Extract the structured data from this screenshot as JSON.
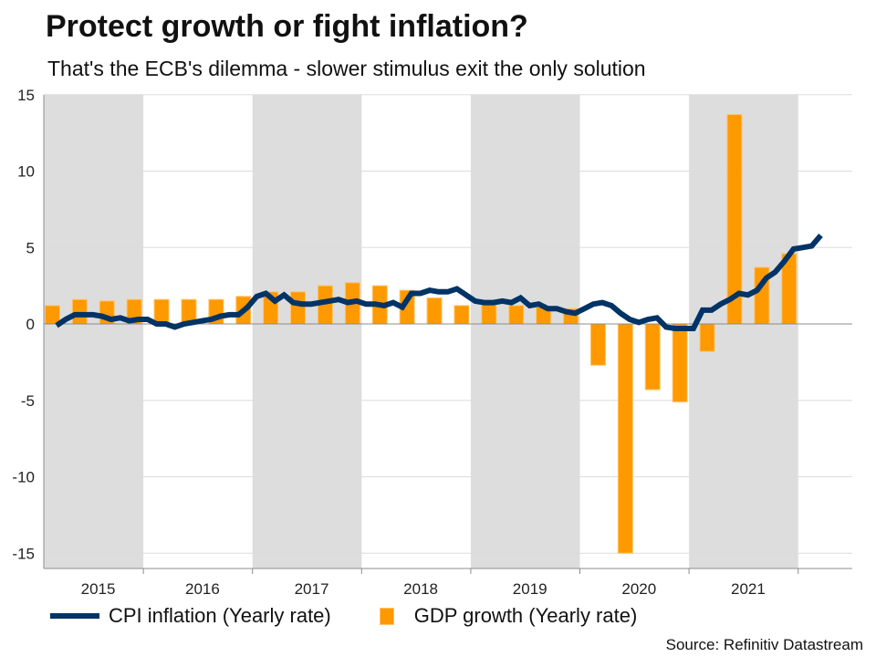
{
  "header": {
    "title": "Protect growth or fight inflation?",
    "subtitle": "That's the ECB's dilemma - slower stimulus exit the only solution"
  },
  "legend": {
    "cpi_label": "CPI inflation (Yearly rate)",
    "gdp_label": "GDP growth (Yearly rate)"
  },
  "source": "Source: Refinitiv Datastream",
  "colors": {
    "cpi": "#003366",
    "gdp": "#ff9900",
    "gdp_edge": "#ffc46b",
    "band": "#dddddd",
    "grid": "#dcdcdc",
    "axis": "#8c8c8c"
  },
  "chart_data": {
    "type": "bar+line",
    "title": "Protect growth or fight inflation?",
    "subtitle": "That's the ECB's dilemma - slower stimulus exit the only solution",
    "xlabel": "",
    "ylabel": "",
    "ylim": [
      -16,
      15
    ],
    "yticks": [
      15,
      10,
      5,
      0,
      -5,
      -10,
      -15
    ],
    "grid": true,
    "legend_position": "bottom",
    "x_range_years": [
      2014.6,
      2022.0
    ],
    "years": [
      "2015",
      "2016",
      "2017",
      "2018",
      "2019",
      "2020",
      "2021"
    ],
    "shaded_years": [
      "2015",
      "2017",
      "2019",
      "2021"
    ],
    "series": [
      {
        "name": "GDP growth (Yearly rate)",
        "type": "bar",
        "x": [
          "2014Q4",
          "2015Q1",
          "2015Q2",
          "2015Q3",
          "2015Q4",
          "2016Q1",
          "2016Q2",
          "2016Q3",
          "2016Q4",
          "2017Q1",
          "2017Q2",
          "2017Q3",
          "2017Q4",
          "2018Q1",
          "2018Q2",
          "2018Q3",
          "2018Q4",
          "2019Q1",
          "2019Q2",
          "2019Q3",
          "2019Q4",
          "2020Q1",
          "2020Q2",
          "2020Q3",
          "2020Q4",
          "2021Q1",
          "2021Q2",
          "2021Q3",
          "2021Q4"
        ],
        "values": [
          1.0,
          1.2,
          1.6,
          1.5,
          1.6,
          1.6,
          1.6,
          1.6,
          1.8,
          2.1,
          2.1,
          2.5,
          2.7,
          2.5,
          2.2,
          1.7,
          1.2,
          1.3,
          1.2,
          1.1,
          1.0,
          -2.7,
          -15.0,
          -4.3,
          -5.1,
          -1.8,
          13.7,
          3.7,
          4.6
        ]
      },
      {
        "name": "CPI inflation (Yearly rate)",
        "type": "line",
        "start": "2015-01",
        "frequency": "monthly",
        "values": [
          -0.1,
          0.3,
          0.6,
          0.6,
          0.6,
          0.5,
          0.3,
          0.4,
          0.2,
          0.3,
          0.3,
          0.0,
          0.0,
          -0.2,
          0.0,
          0.1,
          0.2,
          0.3,
          0.5,
          0.6,
          0.6,
          1.1,
          1.8,
          2.0,
          1.5,
          1.9,
          1.4,
          1.3,
          1.3,
          1.4,
          1.5,
          1.6,
          1.4,
          1.5,
          1.3,
          1.3,
          1.2,
          1.4,
          1.1,
          2.0,
          2.0,
          2.2,
          2.1,
          2.1,
          2.3,
          1.9,
          1.5,
          1.4,
          1.4,
          1.5,
          1.4,
          1.7,
          1.2,
          1.3,
          1.0,
          1.0,
          0.8,
          0.7,
          1.0,
          1.3,
          1.4,
          1.2,
          0.7,
          0.3,
          0.1,
          0.3,
          0.4,
          -0.2,
          -0.3,
          -0.3,
          -0.3,
          0.9,
          0.9,
          1.3,
          1.6,
          2.0,
          1.9,
          2.2,
          3.0,
          3.4,
          4.1,
          4.9,
          5.0,
          5.1,
          5.8
        ]
      }
    ]
  }
}
